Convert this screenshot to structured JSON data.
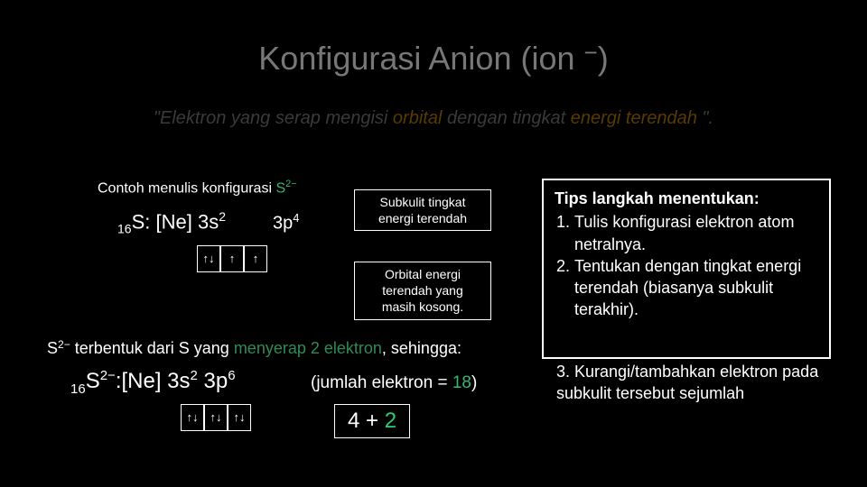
{
  "title_main": "Konfigurasi Anion (ion ",
  "title_minus": "−",
  "title_close": ")",
  "quote": {
    "lead": "\"Elektron yang serap mengisi ",
    "orbital": "orbital",
    "mid": " dengan tingkat ",
    "energi": "energi terendah",
    "end": " \"."
  },
  "contoh": {
    "pre": "Contoh menulis konfigurasi ",
    "s": "S",
    "sup": "2−"
  },
  "config1": {
    "sub": "16",
    "el": "S: ",
    "ne": "[Ne] ",
    "rest": "3s",
    "sup2": "2"
  },
  "p4": {
    "t": "3p",
    "s": "4"
  },
  "orbitals1": [
    "↑↓",
    "↑",
    "↑"
  ],
  "callout1_l1": "Subkulit tingkat",
  "callout1_l2": "energi terendah",
  "callout2_l1": "Orbital energi",
  "callout2_l2": "terendah yang",
  "callout2_l3": "masih kosong.",
  "sentence2": {
    "a": "S",
    "sup": "2−",
    "b": " terbentuk dari S yang ",
    "gr": "menyerap 2 elektron",
    "c": ", sehingga:"
  },
  "config2": {
    "sub": "16",
    "el": "S",
    "sup": "2−",
    "colon": ":",
    "ne": "[Ne] ",
    "s": "3s",
    "ssup": "2",
    "p": " 3p",
    "psup": "6"
  },
  "orbitals2": [
    "↑↓",
    "↑↓",
    "↑↓"
  ],
  "jumlah_pre": "(jumlah elektron = ",
  "jumlah_num": "18",
  "jumlah_post": ")",
  "sum_a": "4 + ",
  "sum_b": "2",
  "tips": {
    "header": "Tips langkah menentukan:",
    "items": [
      "Tulis konfigurasi elektron atom netralnya.",
      "Tentukan dengan tingkat energi terendah (biasanya subkulit terakhir).",
      "Kurangi/tambahkan elektron pada subkulit tersebut sejumlah"
    ]
  },
  "colors": {
    "bg": "#000000",
    "text": "#ffffff",
    "title": "#777777",
    "green": "#2ecc71",
    "darkgreen": "#2e8b57",
    "dimquote": "#3a3a3a",
    "brown": "#5a3a00"
  }
}
